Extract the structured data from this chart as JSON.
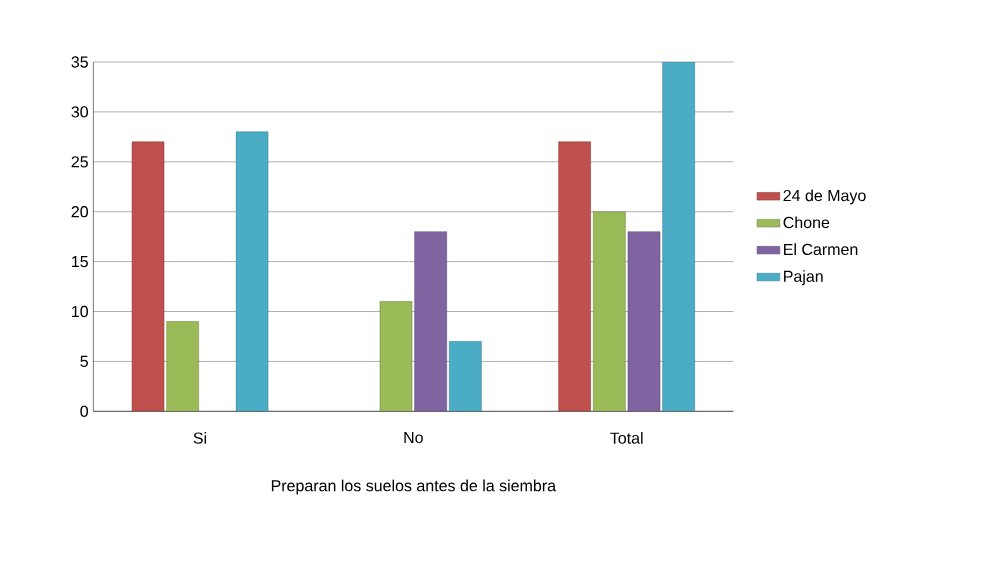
{
  "chart_data": {
    "type": "bar",
    "xlabel": "Preparan los suelos antes de la siembra",
    "categories": [
      "Si",
      "No",
      "Total"
    ],
    "series": [
      {
        "name": "24 de Mayo",
        "color": "#c0504d",
        "values": [
          27,
          null,
          27
        ]
      },
      {
        "name": "Chone",
        "color": "#9bbb59",
        "values": [
          9,
          11,
          20
        ]
      },
      {
        "name": "El Carmen",
        "color": "#8064a2",
        "values": [
          null,
          18,
          18
        ]
      },
      {
        "name": "Pajan",
        "color": "#4bacc6",
        "values": [
          28,
          7,
          35
        ]
      }
    ],
    "ylim": [
      0,
      35
    ],
    "yticks": [
      0,
      5,
      10,
      15,
      20,
      25,
      30,
      35
    ],
    "grid": "y",
    "legend": "right"
  }
}
